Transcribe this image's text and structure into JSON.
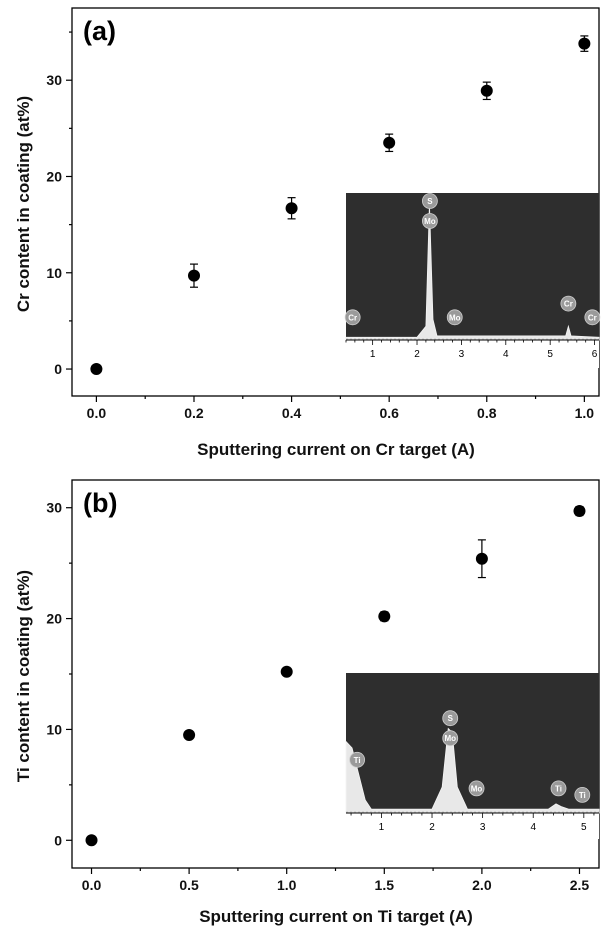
{
  "chart_data": [
    {
      "type": "scatter",
      "panel_label": "(a)",
      "xlabel": "Sputtering current on Cr target (A)",
      "ylabel": "Cr content in coating (at%)",
      "xlim": [
        -0.05,
        1.03
      ],
      "ylim": [
        -2.8,
        37.5
      ],
      "xticks": [
        0.0,
        0.2,
        0.4,
        0.6,
        0.8,
        1.0
      ],
      "xtick_labels": [
        "0.0",
        "0.2",
        "0.4",
        "0.6",
        "0.8",
        "1.0"
      ],
      "yticks": [
        0,
        10,
        20,
        30
      ],
      "ytick_labels": [
        "0",
        "10",
        "20",
        "30"
      ],
      "points": [
        {
          "x": 0.0,
          "y": 0.0,
          "err": 0
        },
        {
          "x": 0.2,
          "y": 9.7,
          "err": 1.2
        },
        {
          "x": 0.4,
          "y": 16.7,
          "err": 1.1
        },
        {
          "x": 0.6,
          "y": 23.5,
          "err": 0.9
        },
        {
          "x": 0.8,
          "y": 28.9,
          "err": 0.9
        },
        {
          "x": 1.0,
          "y": 33.8,
          "err": 0.8
        }
      ],
      "inset": {
        "type": "area",
        "description": "EDS spectrum",
        "xlim": [
          0.4,
          6.1
        ],
        "xticks": [
          1,
          2,
          3,
          4,
          5,
          6
        ],
        "xtick_labels": [
          "1",
          "2",
          "3",
          "4",
          "5",
          "6"
        ],
        "spectrum": [
          [
            0.4,
            0.02
          ],
          [
            2.0,
            0.02
          ],
          [
            2.2,
            0.1
          ],
          [
            2.28,
            1.0
          ],
          [
            2.36,
            0.15
          ],
          [
            2.45,
            0.03
          ],
          [
            5.35,
            0.03
          ],
          [
            5.41,
            0.1
          ],
          [
            5.47,
            0.03
          ],
          [
            6.1,
            0.02
          ]
        ],
        "labels": [
          {
            "x": 0.55,
            "h": 0.1,
            "names": [
              "Cr"
            ]
          },
          {
            "x": 2.29,
            "h": 1.0,
            "names": [
              "S",
              "Mo"
            ]
          },
          {
            "x": 2.85,
            "h": 0.1,
            "names": [
              "Mo"
            ]
          },
          {
            "x": 5.41,
            "h": 0.2,
            "names": [
              "Cr"
            ]
          },
          {
            "x": 5.95,
            "h": 0.1,
            "names": [
              "Cr"
            ]
          }
        ]
      }
    },
    {
      "type": "scatter",
      "panel_label": "(b)",
      "xlabel": "Sputtering current on Ti target (A)",
      "ylabel": "Ti content in coating (at%)",
      "xlim": [
        -0.1,
        2.6
      ],
      "ylim": [
        -2.5,
        32.5
      ],
      "xticks": [
        0.0,
        0.5,
        1.0,
        1.5,
        2.0,
        2.5
      ],
      "xtick_labels": [
        "0.0",
        "0.5",
        "1.0",
        "1.5",
        "2.0",
        "2.5"
      ],
      "yticks": [
        0,
        10,
        20,
        30
      ],
      "ytick_labels": [
        "0",
        "10",
        "20",
        "30"
      ],
      "points": [
        {
          "x": 0.0,
          "y": 0.0,
          "err": 0
        },
        {
          "x": 0.5,
          "y": 9.5,
          "err": 0
        },
        {
          "x": 1.0,
          "y": 15.2,
          "err": 0
        },
        {
          "x": 1.5,
          "y": 20.2,
          "err": 0.4
        },
        {
          "x": 2.0,
          "y": 25.4,
          "err": 1.7
        },
        {
          "x": 2.5,
          "y": 29.7,
          "err": 0.4
        }
      ],
      "inset": {
        "type": "area",
        "description": "EDS spectrum",
        "xlim": [
          0.3,
          5.3
        ],
        "xticks": [
          1,
          2,
          3,
          4,
          5
        ],
        "xtick_labels": [
          "1",
          "2",
          "3",
          "4",
          "5"
        ],
        "spectrum": [
          [
            0.3,
            0.55
          ],
          [
            0.42,
            0.5
          ],
          [
            0.55,
            0.3
          ],
          [
            0.68,
            0.1
          ],
          [
            0.8,
            0.03
          ],
          [
            2.0,
            0.03
          ],
          [
            2.2,
            0.2
          ],
          [
            2.32,
            0.65
          ],
          [
            2.4,
            0.62
          ],
          [
            2.5,
            0.2
          ],
          [
            2.7,
            0.03
          ],
          [
            4.3,
            0.03
          ],
          [
            4.45,
            0.07
          ],
          [
            4.55,
            0.05
          ],
          [
            4.7,
            0.03
          ],
          [
            5.3,
            0.03
          ]
        ],
        "labels": [
          {
            "x": 0.52,
            "h": 0.34,
            "names": [
              "Ti"
            ]
          },
          {
            "x": 2.36,
            "h": 0.66,
            "names": [
              "S",
              "Mo"
            ]
          },
          {
            "x": 2.88,
            "h": 0.12,
            "names": [
              "Mo"
            ]
          },
          {
            "x": 4.5,
            "h": 0.12,
            "names": [
              "Ti"
            ]
          },
          {
            "x": 4.97,
            "h": 0.07,
            "names": [
              "Ti"
            ]
          }
        ]
      }
    }
  ]
}
